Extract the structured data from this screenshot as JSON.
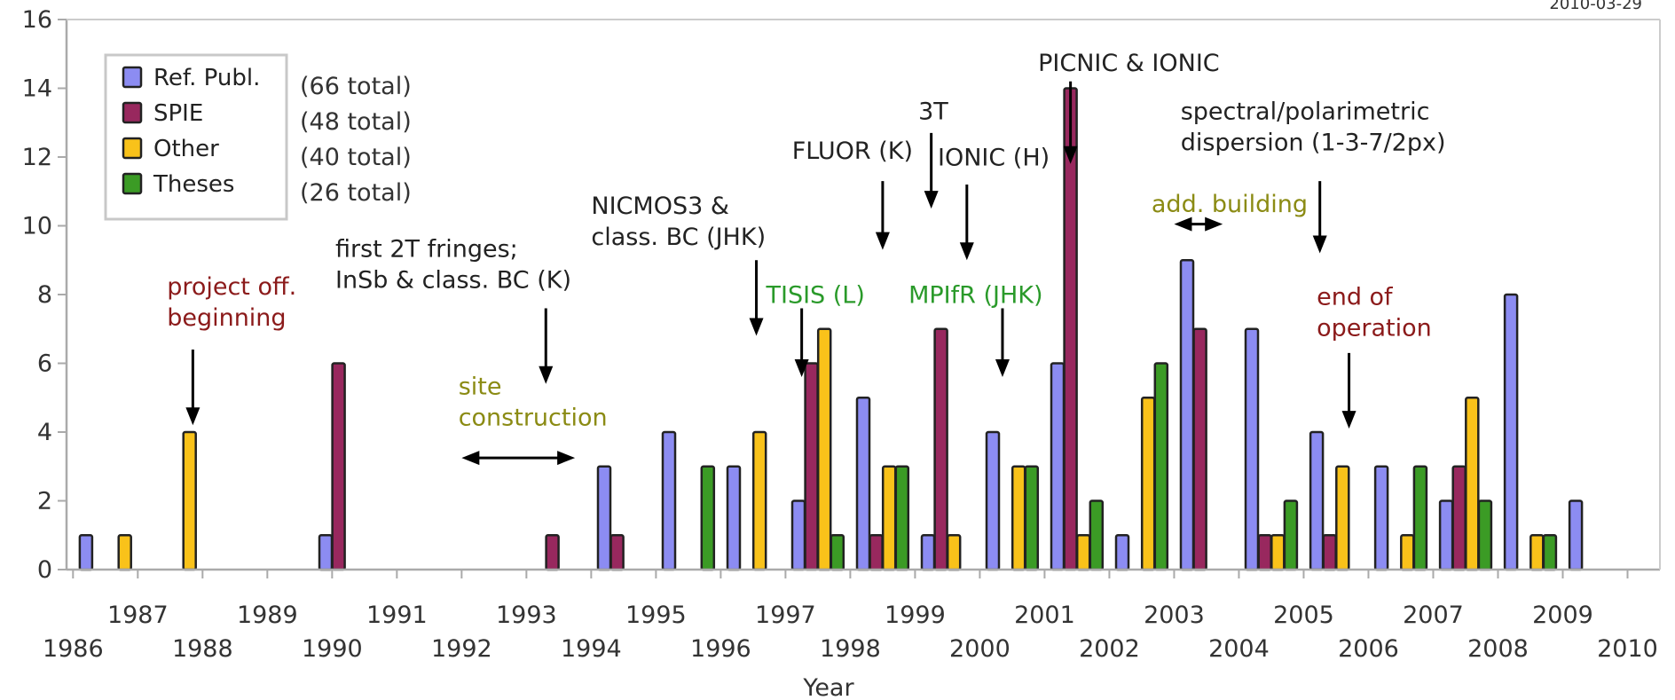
{
  "chart_data": {
    "type": "bar",
    "date_stamp": "2010-03-29",
    "xlabel": "Year",
    "ylabel": "",
    "ylim": [
      0,
      16
    ],
    "yticks": [
      0,
      2,
      4,
      6,
      8,
      10,
      12,
      14,
      16
    ],
    "xlim": [
      1985.9,
      2010.5
    ],
    "xticks": [
      "1986",
      "1987",
      "1988",
      "1989",
      "1990",
      "1991",
      "1992",
      "1993",
      "1994",
      "1995",
      "1996",
      "1997",
      "1998",
      "1999",
      "2000",
      "2001",
      "2002",
      "2003",
      "2004",
      "2005",
      "2006",
      "2007",
      "2008",
      "2009",
      "2010"
    ],
    "grid": false,
    "legend_position": "top-left",
    "series": [
      {
        "name": "Ref. Publ.",
        "total_label": "(66 total)",
        "color": "#8c8cf2",
        "points": [
          [
            1986.2,
            1
          ],
          [
            1989.9,
            1
          ],
          [
            1994.2,
            3
          ],
          [
            1995.2,
            4
          ],
          [
            1996.2,
            3
          ],
          [
            1997.2,
            2
          ],
          [
            1998.2,
            5
          ],
          [
            1999.2,
            1
          ],
          [
            2000.2,
            4
          ],
          [
            2001.2,
            6
          ],
          [
            2002.2,
            1
          ],
          [
            2003.2,
            9
          ],
          [
            2004.2,
            7
          ],
          [
            2005.2,
            4
          ],
          [
            2006.2,
            3
          ],
          [
            2007.2,
            2
          ],
          [
            2008.2,
            8
          ],
          [
            2009.2,
            2
          ]
        ]
      },
      {
        "name": "SPIE",
        "total_label": "(48 total)",
        "color": "#98285e",
        "points": [
          [
            1990.1,
            6
          ],
          [
            1993.4,
            1
          ],
          [
            1994.4,
            1
          ],
          [
            1997.4,
            6
          ],
          [
            1998.4,
            1
          ],
          [
            1999.4,
            7
          ],
          [
            2001.4,
            14
          ],
          [
            2003.4,
            7
          ],
          [
            2004.4,
            1
          ],
          [
            2005.4,
            1
          ],
          [
            2007.4,
            3
          ]
        ]
      },
      {
        "name": "Other",
        "total_label": "(40 total)",
        "color": "#f9c21a",
        "points": [
          [
            1986.8,
            1
          ],
          [
            1987.8,
            4
          ],
          [
            1996.6,
            4
          ],
          [
            1997.6,
            7
          ],
          [
            1998.6,
            3
          ],
          [
            1999.6,
            1
          ],
          [
            2000.6,
            3
          ],
          [
            2001.6,
            1
          ],
          [
            2002.6,
            5
          ],
          [
            2004.6,
            1
          ],
          [
            2005.6,
            3
          ],
          [
            2006.6,
            1
          ],
          [
            2007.6,
            5
          ],
          [
            2008.6,
            1
          ]
        ]
      },
      {
        "name": "Theses",
        "total_label": "(26 total)",
        "color": "#3b9b25",
        "points": [
          [
            1995.8,
            3
          ],
          [
            1997.8,
            1
          ],
          [
            1998.8,
            3
          ],
          [
            2000.8,
            3
          ],
          [
            2001.8,
            2
          ],
          [
            2002.8,
            6
          ],
          [
            2004.8,
            2
          ],
          [
            2006.8,
            3
          ],
          [
            2007.8,
            2
          ],
          [
            2008.8,
            1
          ]
        ]
      }
    ],
    "annotations": [
      {
        "lines": [
          "project off.",
          "beginning"
        ],
        "color": "#8b1a1a",
        "x": 1987.45,
        "y": 8.0,
        "anchor": "start",
        "arrow": {
          "x": 1987.85,
          "from": 6.4,
          "to": 4.2
        }
      },
      {
        "lines": [
          "first 2T fringes;",
          "InSb & class. BC (K)"
        ],
        "color": "#222222",
        "x": 1990.05,
        "y": 9.1,
        "anchor": "start",
        "arrow": {
          "x": 1993.3,
          "from": 7.6,
          "to": 5.4
        }
      },
      {
        "lines": [
          "site",
          "construction"
        ],
        "color": "#8b8b14",
        "x": 1991.95,
        "y": 5.1,
        "anchor": "start",
        "span": {
          "x1": 1992.0,
          "x2": 1993.75,
          "y": 3.25
        }
      },
      {
        "lines": [
          "NICMOS3 &",
          "class. BC (JHK)"
        ],
        "color": "#222222",
        "x": 1994.0,
        "y": 10.35,
        "anchor": "start",
        "arrow": {
          "x": 1996.55,
          "from": 9.0,
          "to": 6.8
        }
      },
      {
        "lines": [
          "TISIS (L)"
        ],
        "color": "#2a9a2a",
        "x": 1996.7,
        "y": 7.75,
        "anchor": "start",
        "arrow": {
          "x": 1997.25,
          "from": 7.6,
          "to": 5.6
        }
      },
      {
        "lines": [
          "FLUOR (K)"
        ],
        "color": "#222222",
        "x": 1997.1,
        "y": 11.95,
        "anchor": "start",
        "arrow": {
          "x": 1998.5,
          "from": 11.3,
          "to": 9.3
        }
      },
      {
        "lines": [
          "MPIfR (JHK)"
        ],
        "color": "#2a9a2a",
        "x": 1998.9,
        "y": 7.75,
        "anchor": "start",
        "arrow": {
          "x": 2000.35,
          "from": 7.6,
          "to": 5.6
        }
      },
      {
        "lines": [
          "3T"
        ],
        "color": "#222222",
        "x": 1999.05,
        "y": 13.1,
        "anchor": "start",
        "arrow": {
          "x": 1999.25,
          "from": 12.7,
          "to": 10.5
        }
      },
      {
        "lines": [
          "IONIC (H)"
        ],
        "color": "#222222",
        "x": 1999.35,
        "y": 11.75,
        "anchor": "start",
        "arrow": {
          "x": 1999.8,
          "from": 11.2,
          "to": 9.0
        }
      },
      {
        "lines": [
          "PICNIC & IONIC"
        ],
        "color": "#222222",
        "x": 2000.9,
        "y": 14.5,
        "anchor": "start",
        "arrow": {
          "x": 2001.4,
          "from": 14.2,
          "to": 11.8
        }
      },
      {
        "lines": [
          "add. building"
        ],
        "color": "#8b8b14",
        "x": 2002.65,
        "y": 10.4,
        "anchor": "start",
        "span": {
          "x1": 2003.0,
          "x2": 2003.75,
          "y": 10.05
        }
      },
      {
        "lines": [
          "spectral/polarimetric",
          "dispersion (1-3-7/2px)"
        ],
        "color": "#222222",
        "x": 2003.1,
        "y": 13.1,
        "anchor": "start",
        "arrow": {
          "x": 2005.25,
          "from": 11.3,
          "to": 9.2
        }
      },
      {
        "lines": [
          "end of",
          "operation"
        ],
        "color": "#8b1a1a",
        "x": 2005.2,
        "y": 7.7,
        "anchor": "start",
        "arrow": {
          "x": 2005.7,
          "from": 6.3,
          "to": 4.1
        }
      }
    ]
  }
}
